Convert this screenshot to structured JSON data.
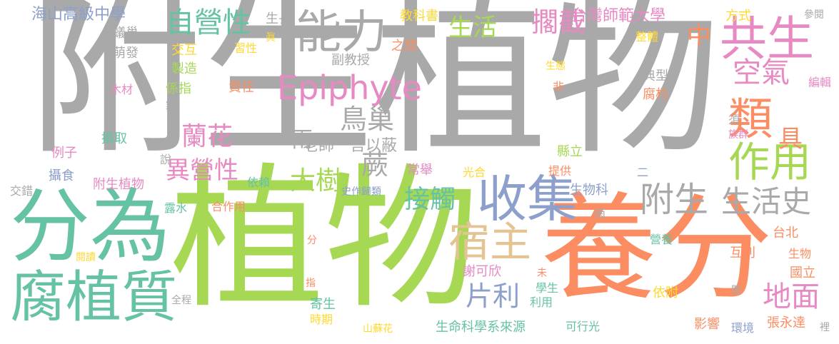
{
  "palette": {
    "gray": "#a9a9a9",
    "green": "#a6d854",
    "teal": "#66c2a5",
    "orange": "#fc8d62",
    "pink": "#e78ac3",
    "blue": "#8da0cb",
    "yellow": "#ffd92f",
    "tan": "#e5c494"
  },
  "words": [
    {
      "text": "附生植物",
      "color": "gray"
    },
    {
      "text": "植物",
      "color": "green"
    },
    {
      "text": "養分",
      "color": "orange"
    },
    {
      "text": "分為",
      "color": "teal"
    },
    {
      "text": "腐植質",
      "color": "teal"
    },
    {
      "text": "能力",
      "color": "gray"
    },
    {
      "text": "共生",
      "color": "pink"
    },
    {
      "text": "收集",
      "color": "blue"
    },
    {
      "text": "類",
      "color": "orange"
    },
    {
      "text": "作用",
      "color": "green"
    },
    {
      "text": "宿主",
      "color": "tan"
    },
    {
      "text": "附生",
      "color": "gray"
    },
    {
      "text": "生活史",
      "color": "gray"
    },
    {
      "text": "自營性",
      "color": "teal"
    },
    {
      "text": "擱截",
      "color": "pink"
    },
    {
      "text": "生活",
      "color": "green"
    },
    {
      "text": "空氣",
      "color": "pink"
    },
    {
      "text": "Epiphyte",
      "color": "pink"
    },
    {
      "text": "鳥巢",
      "color": "gray"
    },
    {
      "text": "蘭花",
      "color": "pink"
    },
    {
      "text": "異營性",
      "color": "pink"
    },
    {
      "text": "大樹",
      "color": "green"
    },
    {
      "text": "接觸",
      "color": "teal"
    },
    {
      "text": "地面",
      "color": "pink"
    },
    {
      "text": "片利",
      "color": "blue"
    },
    {
      "text": "蕨",
      "color": "gray"
    },
    {
      "text": "中",
      "color": "orange"
    },
    {
      "text": "具",
      "color": "orange"
    },
    {
      "text": "海山高級中學",
      "color": "blue"
    },
    {
      "text": "台灣師範大學",
      "color": "pink"
    },
    {
      "text": "教科書",
      "color": "yellow"
    },
    {
      "text": "方式",
      "color": "yellow"
    },
    {
      "text": "參閱",
      "color": "gray"
    },
    {
      "text": "生長",
      "color": "gray"
    },
    {
      "text": "眞",
      "color": "yellow"
    },
    {
      "text": "蟻巢",
      "color": "gray"
    },
    {
      "text": "萌發",
      "color": "gray"
    },
    {
      "text": "交互",
      "color": "yellow"
    },
    {
      "text": "習性",
      "color": "yellow"
    },
    {
      "text": "之間",
      "color": "orange"
    },
    {
      "text": "副教授",
      "color": "gray"
    },
    {
      "text": "整體",
      "color": "yellow"
    },
    {
      "text": "製造",
      "color": "green"
    },
    {
      "text": "生態",
      "color": "yellow"
    },
    {
      "text": "典型",
      "color": "gray"
    },
    {
      "text": "木材",
      "color": "pink"
    },
    {
      "text": "係指",
      "color": "green"
    },
    {
      "text": "責任",
      "color": "orange"
    },
    {
      "text": "非",
      "color": "orange"
    },
    {
      "text": "霧",
      "color": "gray"
    },
    {
      "text": "腐朽",
      "color": "orange"
    },
    {
      "text": "編輯",
      "color": "pink"
    },
    {
      "text": "須",
      "color": "gray"
    },
    {
      "text": "族群",
      "color": "pink"
    },
    {
      "text": "攝取",
      "color": "teal"
    },
    {
      "text": "兩",
      "color": "gray"
    },
    {
      "text": "老師一言以蔽",
      "color": "gray"
    },
    {
      "text": "例子",
      "color": "pink"
    },
    {
      "text": "說",
      "color": "gray"
    },
    {
      "text": "縣立",
      "color": "green"
    },
    {
      "text": "攝食",
      "color": "blue"
    },
    {
      "text": "常舉",
      "color": "pink"
    },
    {
      "text": "光合",
      "color": "yellow"
    },
    {
      "text": "提供",
      "color": "orange"
    },
    {
      "text": "二",
      "color": "blue"
    },
    {
      "text": "附生植物",
      "color": "pink"
    },
    {
      "text": "依賴",
      "color": "teal"
    },
    {
      "text": "交錯",
      "color": "gray"
    },
    {
      "text": "史作歸類",
      "color": "blue"
    },
    {
      "text": "生物科",
      "color": "blue"
    },
    {
      "text": "露水",
      "color": "teal"
    },
    {
      "text": "合作用",
      "color": "orange"
    },
    {
      "text": "雨",
      "color": "gray"
    },
    {
      "text": "台北",
      "color": "orange"
    },
    {
      "text": "分",
      "color": "orange"
    },
    {
      "text": "營養",
      "color": "teal"
    },
    {
      "text": "閱讀",
      "color": "yellow"
    },
    {
      "text": "謝可欣",
      "color": "pink"
    },
    {
      "text": "互利",
      "color": "orange"
    },
    {
      "text": "生物",
      "color": "orange"
    },
    {
      "text": "未",
      "color": "orange"
    },
    {
      "text": "國立",
      "color": "orange"
    },
    {
      "text": "指",
      "color": "orange"
    },
    {
      "text": "學生",
      "color": "teal"
    },
    {
      "text": "依附",
      "color": "yellow"
    },
    {
      "text": "間",
      "color": "gray"
    },
    {
      "text": "全程",
      "color": "gray"
    },
    {
      "text": "寄生",
      "color": "teal"
    },
    {
      "text": "利用",
      "color": "teal"
    },
    {
      "text": "時期",
      "color": "yellow"
    },
    {
      "text": "山蘇花",
      "color": "yellow"
    },
    {
      "text": "生命科學系來源",
      "color": "teal"
    },
    {
      "text": "可行光",
      "color": "teal"
    },
    {
      "text": "影響",
      "color": "orange"
    },
    {
      "text": "環境",
      "color": "blue"
    },
    {
      "text": "張永達",
      "color": "orange"
    },
    {
      "text": "裡",
      "color": "gray"
    }
  ]
}
